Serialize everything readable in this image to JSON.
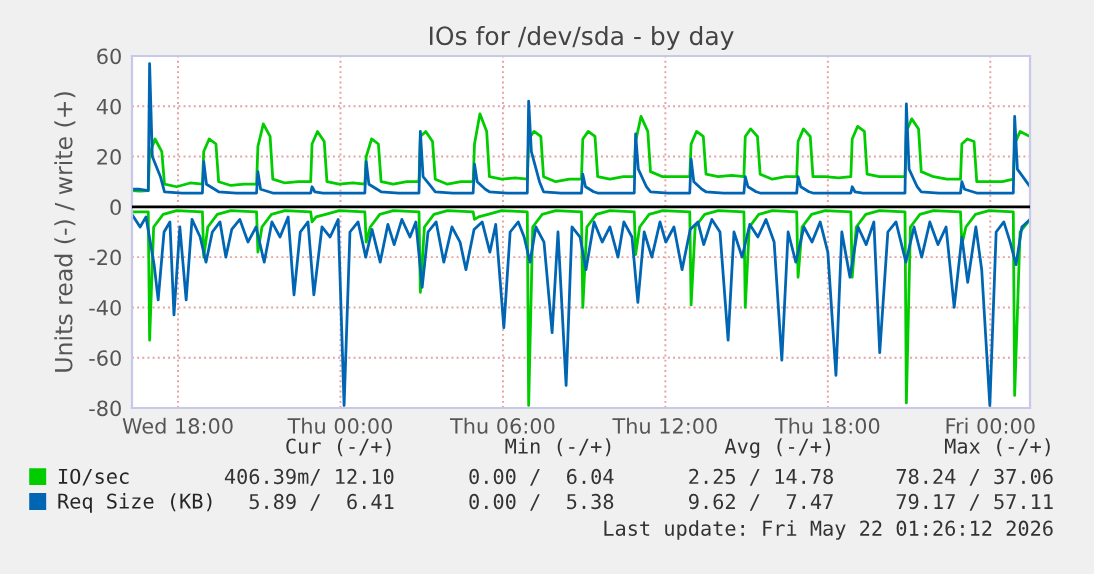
{
  "chart_data": {
    "type": "line",
    "title": "IOs for /dev/sda - by day",
    "ylabel": "Units read (-) / write (+)",
    "xlim": [
      "2026-05-20T16:18",
      "2026-05-22T01:28"
    ],
    "xticks": [
      {
        "value": "2026-05-20T18:00",
        "label": "Wed 18:00"
      },
      {
        "value": "2026-05-21T00:00",
        "label": "Thu 00:00"
      },
      {
        "value": "2026-05-21T06:00",
        "label": "Thu 06:00"
      },
      {
        "value": "2026-05-21T12:00",
        "label": "Thu 12:00"
      },
      {
        "value": "2026-05-21T18:00",
        "label": "Thu 18:00"
      },
      {
        "value": "2026-05-22T00:00",
        "label": "Fri 00:00"
      }
    ],
    "ylim": [
      -80,
      60
    ],
    "yticks": [
      -80,
      -60,
      -40,
      -20,
      0,
      20,
      40,
      60
    ],
    "grid": true,
    "legend": "bottom left",
    "marker": "none",
    "line_style": "solid",
    "ref_lines": [
      {
        "axis": "y",
        "value": 0,
        "color": "#000000"
      }
    ],
    "series": [
      {
        "name": "IO/sec",
        "color": "#00cc00",
        "x": [
          "2026-05-20T16:18",
          "2026-05-20T16:36",
          "2026-05-20T16:54",
          "2026-05-20T16:57",
          "2026-05-20T17:09",
          "2026-05-20T17:24",
          "2026-05-20T17:30",
          "2026-05-20T17:57",
          "2026-05-20T18:27",
          "2026-05-20T18:54",
          "2026-05-20T18:57",
          "2026-05-20T19:09",
          "2026-05-20T19:24",
          "2026-05-20T19:30",
          "2026-05-20T19:57",
          "2026-05-20T20:27",
          "2026-05-20T20:54",
          "2026-05-20T20:57",
          "2026-05-20T21:09",
          "2026-05-20T21:24",
          "2026-05-20T21:30",
          "2026-05-20T21:57",
          "2026-05-20T22:27",
          "2026-05-20T22:54",
          "2026-05-20T22:57",
          "2026-05-20T23:09",
          "2026-05-20T23:24",
          "2026-05-20T23:30",
          "2026-05-20T23:57",
          "2026-05-21T00:27",
          "2026-05-21T00:54",
          "2026-05-21T00:57",
          "2026-05-21T01:09",
          "2026-05-21T01:24",
          "2026-05-21T01:30",
          "2026-05-21T01:57",
          "2026-05-21T02:27",
          "2026-05-21T02:54",
          "2026-05-21T02:57",
          "2026-05-21T03:09",
          "2026-05-21T03:24",
          "2026-05-21T03:30",
          "2026-05-21T03:57",
          "2026-05-21T04:27",
          "2026-05-21T04:54",
          "2026-05-21T04:57",
          "2026-05-21T05:09",
          "2026-05-21T05:24",
          "2026-05-21T05:30",
          "2026-05-21T05:57",
          "2026-05-21T06:27",
          "2026-05-21T06:54",
          "2026-05-21T06:57",
          "2026-05-21T07:09",
          "2026-05-21T07:24",
          "2026-05-21T07:30",
          "2026-05-21T07:57",
          "2026-05-21T08:27",
          "2026-05-21T08:54",
          "2026-05-21T08:57",
          "2026-05-21T09:09",
          "2026-05-21T09:24",
          "2026-05-21T09:30",
          "2026-05-21T09:57",
          "2026-05-21T10:27",
          "2026-05-21T10:51",
          "2026-05-21T10:54",
          "2026-05-21T11:06",
          "2026-05-21T11:21",
          "2026-05-21T11:27",
          "2026-05-21T11:54",
          "2026-05-21T12:24",
          "2026-05-21T12:54",
          "2026-05-21T12:57",
          "2026-05-21T13:09",
          "2026-05-21T13:24",
          "2026-05-21T13:30",
          "2026-05-21T13:57",
          "2026-05-21T14:27",
          "2026-05-21T14:54",
          "2026-05-21T14:57",
          "2026-05-21T15:09",
          "2026-05-21T15:24",
          "2026-05-21T15:30",
          "2026-05-21T15:57",
          "2026-05-21T16:27",
          "2026-05-21T16:51",
          "2026-05-21T16:54",
          "2026-05-21T17:06",
          "2026-05-21T17:21",
          "2026-05-21T17:27",
          "2026-05-21T17:54",
          "2026-05-21T18:24",
          "2026-05-21T18:51",
          "2026-05-21T18:54",
          "2026-05-21T19:06",
          "2026-05-21T19:21",
          "2026-05-21T19:27",
          "2026-05-21T19:54",
          "2026-05-21T20:24",
          "2026-05-21T20:51",
          "2026-05-21T20:54",
          "2026-05-21T21:06",
          "2026-05-21T21:21",
          "2026-05-21T21:27",
          "2026-05-21T21:54",
          "2026-05-21T22:24",
          "2026-05-21T22:54",
          "2026-05-21T22:57",
          "2026-05-21T23:09",
          "2026-05-21T23:24",
          "2026-05-21T23:30",
          "2026-05-21T23:57",
          "2026-05-22T00:27",
          "2026-05-22T00:51",
          "2026-05-22T00:54",
          "2026-05-22T01:06",
          "2026-05-22T01:28"
        ],
        "values": [
          6.5,
          6.3,
          6.5,
          21,
          27,
          22,
          9,
          8,
          9.5,
          9,
          22,
          27,
          25,
          10,
          8.5,
          9,
          9,
          24,
          33,
          28,
          11,
          9.5,
          10,
          10,
          25,
          30,
          26,
          10,
          9,
          9.5,
          9,
          20,
          27,
          25,
          10,
          9,
          10,
          10,
          28,
          30,
          26,
          11,
          9,
          10,
          10,
          25,
          37,
          30,
          12,
          11,
          11.5,
          11,
          27,
          30,
          28,
          12,
          10,
          11,
          11,
          27,
          30,
          28,
          12,
          11,
          12,
          12,
          26,
          36,
          30,
          14,
          12,
          12,
          12,
          25,
          30,
          28,
          13,
          12,
          12.5,
          12,
          28,
          31,
          28,
          13,
          11,
          12,
          12,
          26,
          31,
          28,
          12,
          12,
          11.5,
          12,
          27,
          32,
          30,
          13,
          12,
          12,
          12,
          30,
          35,
          31,
          14,
          12,
          11,
          11,
          25,
          27,
          26,
          10,
          10,
          10,
          11,
          25,
          30,
          28
        ]
      },
      {
        "color": "#00cc00",
        "x": [
          "2026-05-20T16:18",
          "2026-05-20T16:54",
          "2026-05-20T16:57",
          "2026-05-20T17:06",
          "2026-05-20T17:27",
          "2026-05-20T17:57",
          "2026-05-20T18:54",
          "2026-05-20T18:57",
          "2026-05-20T19:06",
          "2026-05-20T19:27",
          "2026-05-20T19:57",
          "2026-05-20T20:54",
          "2026-05-20T20:57",
          "2026-05-20T21:06",
          "2026-05-20T21:27",
          "2026-05-20T21:57",
          "2026-05-20T22:54",
          "2026-05-20T22:57",
          "2026-05-20T23:06",
          "2026-05-20T23:27",
          "2026-05-20T23:57",
          "2026-05-21T00:54",
          "2026-05-21T00:57",
          "2026-05-21T01:06",
          "2026-05-21T01:27",
          "2026-05-21T01:57",
          "2026-05-21T02:54",
          "2026-05-21T02:57",
          "2026-05-21T03:06",
          "2026-05-21T03:27",
          "2026-05-21T03:57",
          "2026-05-21T04:54",
          "2026-05-21T04:57",
          "2026-05-21T05:06",
          "2026-05-21T05:27",
          "2026-05-21T05:57",
          "2026-05-21T06:54",
          "2026-05-21T06:57",
          "2026-05-21T07:06",
          "2026-05-21T07:27",
          "2026-05-21T07:57",
          "2026-05-21T08:54",
          "2026-05-21T08:57",
          "2026-05-21T09:06",
          "2026-05-21T09:27",
          "2026-05-21T09:57",
          "2026-05-21T10:51",
          "2026-05-21T10:54",
          "2026-05-21T11:03",
          "2026-05-21T11:24",
          "2026-05-21T11:54",
          "2026-05-21T12:54",
          "2026-05-21T12:57",
          "2026-05-21T13:06",
          "2026-05-21T13:27",
          "2026-05-21T13:57",
          "2026-05-21T14:54",
          "2026-05-21T14:57",
          "2026-05-21T15:06",
          "2026-05-21T15:27",
          "2026-05-21T15:57",
          "2026-05-21T16:51",
          "2026-05-21T16:54",
          "2026-05-21T17:03",
          "2026-05-21T17:24",
          "2026-05-21T17:54",
          "2026-05-21T18:51",
          "2026-05-21T18:54",
          "2026-05-21T19:03",
          "2026-05-21T19:24",
          "2026-05-21T19:54",
          "2026-05-21T20:51",
          "2026-05-21T20:54",
          "2026-05-21T21:03",
          "2026-05-21T21:24",
          "2026-05-21T21:54",
          "2026-05-21T22:54",
          "2026-05-21T22:57",
          "2026-05-21T23:06",
          "2026-05-21T23:27",
          "2026-05-21T23:57",
          "2026-05-22T00:51",
          "2026-05-22T00:54",
          "2026-05-22T01:06",
          "2026-05-22T01:28"
        ],
        "values": [
          -2,
          -2,
          -53,
          -8,
          -3,
          -1.5,
          -2,
          -20,
          -8,
          -3,
          -1.5,
          -2,
          -18,
          -8,
          -3,
          -1.5,
          -2,
          -6,
          -4,
          -3,
          -1.5,
          -2,
          -14,
          -8,
          -3,
          -1.5,
          -2,
          -34,
          -8,
          -3,
          -1.5,
          -2,
          -5,
          -4,
          -3,
          -1.5,
          -2,
          -79,
          -8,
          -3,
          -1.5,
          -2,
          -40,
          -8,
          -3,
          -1.5,
          -2,
          -19,
          -8,
          -3,
          -1.5,
          -2,
          -39,
          -8,
          -3,
          -1.5,
          -2,
          -40,
          -8,
          -3,
          -1.5,
          -2,
          -28,
          -8,
          -3,
          -1.5,
          -2,
          -28,
          -8,
          -3,
          -1.5,
          -2,
          -78,
          -8,
          -3,
          -1.5,
          -2,
          -15,
          -8,
          -3,
          -1.5,
          -2,
          -75,
          -10,
          -5
        ]
      },
      {
        "name": "Req Size (KB)",
        "color": "#0066b3",
        "x": [
          "2026-05-20T16:18",
          "2026-05-20T16:36",
          "2026-05-20T16:54",
          "2026-05-20T16:57",
          "2026-05-20T17:03",
          "2026-05-20T17:21",
          "2026-05-20T17:30",
          "2026-05-20T18:09",
          "2026-05-20T18:54",
          "2026-05-20T18:57",
          "2026-05-20T19:03",
          "2026-05-20T19:21",
          "2026-05-20T19:30",
          "2026-05-20T20:09",
          "2026-05-20T20:54",
          "2026-05-20T20:57",
          "2026-05-20T21:03",
          "2026-05-20T21:21",
          "2026-05-20T21:30",
          "2026-05-20T22:09",
          "2026-05-20T22:54",
          "2026-05-20T22:57",
          "2026-05-20T23:03",
          "2026-05-20T23:21",
          "2026-05-20T23:30",
          "2026-05-21T00:09",
          "2026-05-21T00:54",
          "2026-05-21T00:57",
          "2026-05-21T01:03",
          "2026-05-21T01:21",
          "2026-05-21T01:30",
          "2026-05-21T02:09",
          "2026-05-21T02:54",
          "2026-05-21T02:57",
          "2026-05-21T03:03",
          "2026-05-21T03:21",
          "2026-05-21T03:30",
          "2026-05-21T04:09",
          "2026-05-21T04:54",
          "2026-05-21T04:57",
          "2026-05-21T05:03",
          "2026-05-21T05:21",
          "2026-05-21T05:30",
          "2026-05-21T06:09",
          "2026-05-21T06:54",
          "2026-05-21T06:57",
          "2026-05-21T07:03",
          "2026-05-21T07:21",
          "2026-05-21T07:30",
          "2026-05-21T08:09",
          "2026-05-21T08:54",
          "2026-05-21T08:57",
          "2026-05-21T09:03",
          "2026-05-21T09:21",
          "2026-05-21T09:30",
          "2026-05-21T10:09",
          "2026-05-21T10:51",
          "2026-05-21T10:54",
          "2026-05-21T11:00",
          "2026-05-21T11:18",
          "2026-05-21T11:27",
          "2026-05-21T12:06",
          "2026-05-21T12:54",
          "2026-05-21T12:57",
          "2026-05-21T13:03",
          "2026-05-21T13:21",
          "2026-05-21T13:30",
          "2026-05-21T14:09",
          "2026-05-21T14:54",
          "2026-05-21T14:57",
          "2026-05-21T15:03",
          "2026-05-21T15:21",
          "2026-05-21T15:30",
          "2026-05-21T16:09",
          "2026-05-21T16:51",
          "2026-05-21T16:54",
          "2026-05-21T17:00",
          "2026-05-21T17:18",
          "2026-05-21T17:27",
          "2026-05-21T18:06",
          "2026-05-21T18:51",
          "2026-05-21T18:54",
          "2026-05-21T19:00",
          "2026-05-21T19:18",
          "2026-05-21T19:27",
          "2026-05-21T20:06",
          "2026-05-21T20:51",
          "2026-05-21T20:54",
          "2026-05-21T21:00",
          "2026-05-21T21:18",
          "2026-05-21T21:27",
          "2026-05-21T22:06",
          "2026-05-21T22:54",
          "2026-05-21T22:57",
          "2026-05-21T23:03",
          "2026-05-21T23:21",
          "2026-05-21T23:30",
          "2026-05-22T00:09",
          "2026-05-22T00:51",
          "2026-05-22T00:54",
          "2026-05-22T01:00",
          "2026-05-22T01:28"
        ],
        "values": [
          7,
          7,
          6.5,
          57,
          20,
          12,
          6,
          5.5,
          5.5,
          18,
          9,
          7,
          6,
          5.5,
          5.5,
          14,
          7,
          6,
          5.5,
          5.5,
          5.5,
          8,
          6,
          5.5,
          5.5,
          5.5,
          5.5,
          18,
          9,
          7,
          6,
          5.5,
          5.5,
          30,
          12,
          8,
          6,
          5.5,
          5.5,
          17,
          10,
          7,
          6,
          5.5,
          5.5,
          42,
          22,
          10,
          6,
          5.5,
          5.5,
          13,
          8,
          6,
          5.5,
          5.5,
          5.5,
          29,
          15,
          8,
          6,
          5.5,
          5.5,
          19,
          10,
          7,
          6,
          5.5,
          5.5,
          12,
          8,
          6,
          5.5,
          5.5,
          5.5,
          12,
          8,
          6,
          5.5,
          5.5,
          5.5,
          8,
          6,
          5.5,
          5.5,
          5.5,
          5.5,
          41,
          15,
          8,
          6,
          5.5,
          5.5,
          10,
          7,
          6,
          5.5,
          5.5,
          5.5,
          36,
          15,
          8
        ]
      },
      {
        "color": "#0066b3",
        "x": [
          "2026-05-20T16:18",
          "2026-05-20T16:36",
          "2026-05-20T16:49",
          "2026-05-20T17:07",
          "2026-05-20T17:16",
          "2026-05-20T17:29",
          "2026-05-20T17:42",
          "2026-05-20T17:51",
          "2026-05-20T18:04",
          "2026-05-20T18:18",
          "2026-05-20T18:31",
          "2026-05-20T18:49",
          "2026-05-20T19:02",
          "2026-05-20T19:16",
          "2026-05-20T19:33",
          "2026-05-20T19:46",
          "2026-05-20T19:59",
          "2026-05-20T20:17",
          "2026-05-20T20:35",
          "2026-05-20T20:53",
          "2026-05-20T21:11",
          "2026-05-20T21:28",
          "2026-05-20T21:46",
          "2026-05-20T22:04",
          "2026-05-20T22:17",
          "2026-05-20T22:31",
          "2026-05-20T22:48",
          "2026-05-20T23:01",
          "2026-05-20T23:19",
          "2026-05-20T23:37",
          "2026-05-20T23:55",
          "2026-05-21T00:08",
          "2026-05-21T00:21",
          "2026-05-21T00:39",
          "2026-05-21T00:56",
          "2026-05-21T01:10",
          "2026-05-21T01:28",
          "2026-05-21T01:45",
          "2026-05-21T01:59",
          "2026-05-21T02:16",
          "2026-05-21T02:34",
          "2026-05-21T02:47",
          "2026-05-21T03:01",
          "2026-05-21T03:14",
          "2026-05-21T03:32",
          "2026-05-21T03:49",
          "2026-05-21T04:07",
          "2026-05-21T04:25",
          "2026-05-21T04:38",
          "2026-05-21T04:56",
          "2026-05-21T05:14",
          "2026-05-21T05:31",
          "2026-05-21T05:44",
          "2026-05-21T06:02",
          "2026-05-21T06:16",
          "2026-05-21T06:34",
          "2026-05-21T06:47",
          "2026-05-21T07:00",
          "2026-05-21T07:13",
          "2026-05-21T07:31",
          "2026-05-21T07:49",
          "2026-05-21T08:02",
          "2026-05-21T08:20",
          "2026-05-21T08:33",
          "2026-05-21T08:51",
          "2026-05-21T09:04",
          "2026-05-21T09:22",
          "2026-05-21T09:40",
          "2026-05-21T09:57",
          "2026-05-21T10:15",
          "2026-05-21T10:28",
          "2026-05-21T10:46",
          "2026-05-21T10:59",
          "2026-05-21T11:13",
          "2026-05-21T11:30",
          "2026-05-21T11:48",
          "2026-05-21T12:01",
          "2026-05-21T12:19",
          "2026-05-21T12:37",
          "2026-05-21T12:55",
          "2026-05-21T13:12",
          "2026-05-21T13:25",
          "2026-05-21T13:43",
          "2026-05-21T14:01",
          "2026-05-21T14:19",
          "2026-05-21T14:32",
          "2026-05-21T14:50",
          "2026-05-21T15:07",
          "2026-05-21T15:25",
          "2026-05-21T15:43",
          "2026-05-21T16:01",
          "2026-05-21T16:18",
          "2026-05-21T16:32",
          "2026-05-21T16:49",
          "2026-05-21T17:07",
          "2026-05-21T17:25",
          "2026-05-21T17:43",
          "2026-05-21T18:00",
          "2026-05-21T18:18",
          "2026-05-21T18:31",
          "2026-05-21T18:49",
          "2026-05-21T19:07",
          "2026-05-21T19:25",
          "2026-05-21T19:42",
          "2026-05-21T19:55",
          "2026-05-21T20:13",
          "2026-05-21T20:31",
          "2026-05-21T20:53",
          "2026-05-21T21:11",
          "2026-05-21T21:28",
          "2026-05-21T21:46",
          "2026-05-21T22:04",
          "2026-05-21T22:22",
          "2026-05-21T22:40",
          "2026-05-21T22:57",
          "2026-05-21T23:10",
          "2026-05-21T23:28",
          "2026-05-21T23:41",
          "2026-05-21T23:59",
          "2026-05-22T00:13",
          "2026-05-22T00:30",
          "2026-05-22T00:44",
          "2026-05-22T00:57",
          "2026-05-22T01:10",
          "2026-05-22T01:28"
        ],
        "values": [
          -3,
          -8,
          -4,
          -23,
          -37,
          -10,
          -6,
          -43,
          -8,
          -37,
          -5,
          -12,
          -22,
          -10,
          -6,
          -20,
          -9,
          -5,
          -14,
          -8,
          -22,
          -6,
          -12,
          -4,
          -35,
          -10,
          -6,
          -35,
          -8,
          -12,
          -5,
          -79,
          -10,
          -6,
          -20,
          -9,
          -22,
          -7,
          -15,
          -5,
          -12,
          -6,
          -32,
          -10,
          -6,
          -22,
          -8,
          -14,
          -25,
          -9,
          -6,
          -18,
          -7,
          -48,
          -10,
          -6,
          -12,
          -22,
          -8,
          -14,
          -50,
          -10,
          -71,
          -8,
          -12,
          -25,
          -6,
          -14,
          -8,
          -20,
          -6,
          -12,
          -38,
          -10,
          -20,
          -6,
          -14,
          -8,
          -25,
          -9,
          -6,
          -15,
          -5,
          -10,
          -53,
          -10,
          -20,
          -7,
          -12,
          -5,
          -14,
          -61,
          -10,
          -22,
          -8,
          -14,
          -6,
          -18,
          -67,
          -10,
          -28,
          -8,
          -15,
          -6,
          -58,
          -10,
          -6,
          -22,
          -8,
          -20,
          -6,
          -15,
          -8,
          -40,
          -12,
          -30,
          -8,
          -25,
          -79,
          -10,
          -6,
          -14,
          -23,
          -8,
          -5
        ]
      }
    ],
    "annotations": [
      "Cur (-/+)         Min (-/+)         Avg (-/+)         Max (-/+)",
      "406.39m/ 12.10      0.00 /  6.04      2.25 / 14.78     78.24 / 37.06",
      "  5.89 /  6.41      0.00 /  5.38      9.62 /  7.47     79.17 / 57.11",
      "Last update: Fri May 22 01:26:12 2026"
    ]
  }
}
